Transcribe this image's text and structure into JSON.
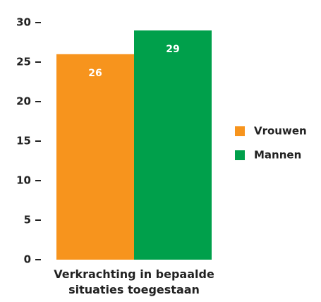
{
  "chart_data": {
    "type": "bar",
    "categories": [
      "Verkrachting in bepaalde situaties toegestaan"
    ],
    "series": [
      {
        "name": "Vrouwen",
        "color": "#f7941d",
        "values": [
          26
        ]
      },
      {
        "name": "Mannen",
        "color": "#00a04b",
        "values": [
          29
        ]
      }
    ],
    "ylim": [
      0,
      30
    ],
    "yticks": [
      0,
      5,
      10,
      15,
      20,
      25,
      30
    ],
    "grid": false,
    "legend": "right"
  }
}
